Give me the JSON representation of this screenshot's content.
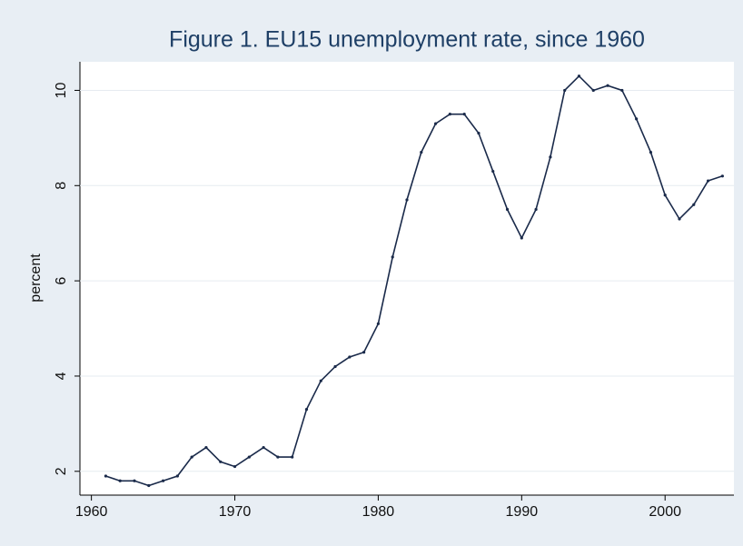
{
  "chart_data": {
    "type": "line",
    "title": "Figure 1. EU15 unemployment rate, since 1960",
    "ylabel": "percent",
    "x": [
      1961,
      1962,
      1963,
      1964,
      1965,
      1966,
      1967,
      1968,
      1969,
      1970,
      1971,
      1972,
      1973,
      1974,
      1975,
      1976,
      1977,
      1978,
      1979,
      1980,
      1981,
      1982,
      1983,
      1984,
      1985,
      1986,
      1987,
      1988,
      1989,
      1990,
      1991,
      1992,
      1993,
      1994,
      1995,
      1996,
      1997,
      1998,
      1999,
      2000,
      2001,
      2002,
      2003,
      2004
    ],
    "series": [
      {
        "color": "#1a2a4a",
        "values": [
          1.9,
          1.8,
          1.8,
          1.7,
          1.8,
          1.9,
          2.3,
          2.5,
          2.2,
          2.1,
          2.3,
          2.5,
          2.3,
          2.3,
          3.3,
          3.9,
          4.2,
          4.4,
          4.5,
          5.1,
          6.5,
          7.7,
          8.7,
          9.3,
          9.5,
          9.5,
          9.1,
          8.3,
          7.5,
          6.9,
          7.5,
          8.6,
          10.0,
          10.3,
          10.0,
          10.1,
          10.0,
          9.4,
          8.7,
          7.8,
          7.3,
          7.6,
          8.1,
          8.2
        ]
      }
    ],
    "xlim": [
      1959.2,
      2004.8
    ],
    "xticks": [
      1960,
      1970,
      1980,
      1990,
      2000
    ],
    "ylim": [
      1.5,
      10.6
    ],
    "yticks": [
      2,
      4,
      6,
      8,
      10
    ],
    "grid": true
  }
}
